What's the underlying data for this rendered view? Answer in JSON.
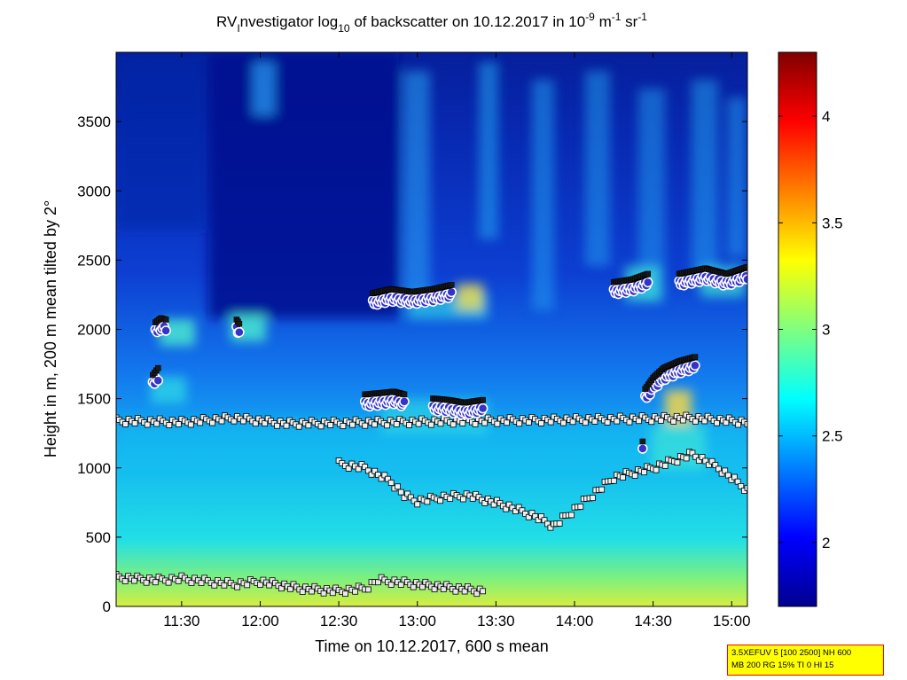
{
  "chart_data": {
    "type": "heatmap",
    "title": {
      "prefix": "RV",
      "prefix_sub": "I",
      "part1": "nvestigator log",
      "log_base": "10",
      "part2": " of backscatter on 10.12.2017 in 10",
      "exp1": "-9",
      "part3": " m",
      "exp2": "-1",
      "part4": " sr",
      "exp3": "-1"
    },
    "xlabel": "Time on 10.12.2017, 600 s mean",
    "ylabel": "Height in m, 200 m mean tilted by 2°",
    "x_range_minutes": [
      665,
      906
    ],
    "xlim": [
      "11:05",
      "15:06"
    ],
    "ylim": [
      0,
      4000
    ],
    "x_ticks": [
      {
        "minutes": 690,
        "label": "11:30"
      },
      {
        "minutes": 720,
        "label": "12:00"
      },
      {
        "minutes": 750,
        "label": "12:30"
      },
      {
        "minutes": 780,
        "label": "13:00"
      },
      {
        "minutes": 810,
        "label": "13:30"
      },
      {
        "minutes": 840,
        "label": "14:00"
      },
      {
        "minutes": 870,
        "label": "14:30"
      },
      {
        "minutes": 900,
        "label": "15:00"
      }
    ],
    "y_ticks": [
      0,
      500,
      1000,
      1500,
      2000,
      2500,
      3000,
      3500
    ],
    "colorbar": {
      "range": [
        1.7,
        4.3
      ],
      "ticks": [
        2,
        2.5,
        3,
        3.5,
        4
      ],
      "colormap": "jet"
    },
    "features": {
      "surface_layer_top_m": [
        {
          "t": 665,
          "h": 210
        },
        {
          "t": 680,
          "h": 190
        },
        {
          "t": 690,
          "h": 200
        },
        {
          "t": 700,
          "h": 180
        },
        {
          "t": 710,
          "h": 160
        },
        {
          "t": 720,
          "h": 180
        },
        {
          "t": 735,
          "h": 130
        },
        {
          "t": 750,
          "h": 110
        },
        {
          "t": 760,
          "h": 130
        },
        {
          "t": 765,
          "h": 190
        },
        {
          "t": 775,
          "h": 170
        },
        {
          "t": 790,
          "h": 140
        },
        {
          "t": 805,
          "h": 110
        }
      ],
      "boundary_layer_top_m": [
        {
          "t": 750,
          "h": 1030
        },
        {
          "t": 760,
          "h": 1000
        },
        {
          "t": 770,
          "h": 900
        },
        {
          "t": 775,
          "h": 800
        },
        {
          "t": 780,
          "h": 760
        },
        {
          "t": 790,
          "h": 790
        },
        {
          "t": 800,
          "h": 800
        },
        {
          "t": 815,
          "h": 720
        },
        {
          "t": 825,
          "h": 650
        },
        {
          "t": 832,
          "h": 580
        },
        {
          "t": 840,
          "h": 700
        },
        {
          "t": 855,
          "h": 930
        },
        {
          "t": 870,
          "h": 1000
        },
        {
          "t": 885,
          "h": 1100
        },
        {
          "t": 895,
          "h": 1000
        },
        {
          "t": 906,
          "h": 840
        }
      ],
      "aerosol_layer_top_m": [
        {
          "t": 665,
          "h": 1340
        },
        {
          "t": 690,
          "h": 1330
        },
        {
          "t": 710,
          "h": 1360
        },
        {
          "t": 730,
          "h": 1320
        },
        {
          "t": 885,
          "h": 1360
        },
        {
          "t": 906,
          "h": 1330
        }
      ],
      "cloud_base_segments_m": [
        [
          {
            "t": 679,
            "h": 1600
          },
          {
            "t": 681,
            "h": 1650
          }
        ],
        [
          {
            "t": 680,
            "h": 1980
          },
          {
            "t": 682,
            "h": 2010
          },
          {
            "t": 684,
            "h": 2000
          }
        ],
        [
          {
            "t": 711,
            "h": 2000
          },
          {
            "t": 712,
            "h": 1970
          }
        ],
        [
          {
            "t": 760,
            "h": 1460
          },
          {
            "t": 766,
            "h": 1470
          },
          {
            "t": 771,
            "h": 1480
          },
          {
            "t": 775,
            "h": 1460
          }
        ],
        [
          {
            "t": 763,
            "h": 2190
          },
          {
            "t": 770,
            "h": 2220
          },
          {
            "t": 778,
            "h": 2200
          },
          {
            "t": 786,
            "h": 2220
          },
          {
            "t": 793,
            "h": 2250
          }
        ],
        [
          {
            "t": 786,
            "h": 1430
          },
          {
            "t": 792,
            "h": 1420
          },
          {
            "t": 798,
            "h": 1400
          },
          {
            "t": 805,
            "h": 1420
          }
        ],
        [
          {
            "t": 855,
            "h": 2270
          },
          {
            "t": 862,
            "h": 2290
          },
          {
            "t": 868,
            "h": 2330
          }
        ],
        [
          {
            "t": 866,
            "h": 1120
          }
        ],
        [
          {
            "t": 867,
            "h": 1500
          },
          {
            "t": 870,
            "h": 1580
          },
          {
            "t": 874,
            "h": 1650
          },
          {
            "t": 880,
            "h": 1700
          },
          {
            "t": 886,
            "h": 1730
          }
        ],
        [
          {
            "t": 880,
            "h": 2330
          },
          {
            "t": 890,
            "h": 2370
          },
          {
            "t": 898,
            "h": 2330
          },
          {
            "t": 906,
            "h": 2380
          }
        ]
      ]
    }
  },
  "info_box": {
    "line1": "3.5XEFUV 5 [100 2500] NH 600",
    "line2": "MB 200 RG 15% TI 0 HI 15"
  }
}
